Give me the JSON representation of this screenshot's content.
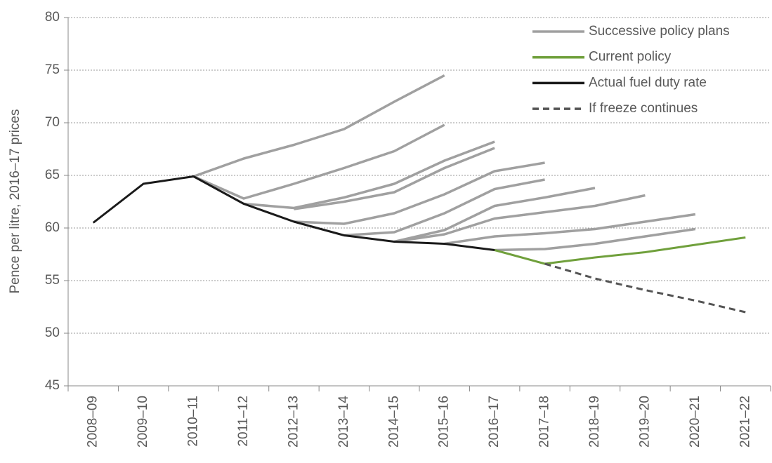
{
  "chart_data": {
    "type": "line",
    "y_label": "Pence per litre, 2016–17 prices",
    "categories": [
      "2008–09",
      "2009–10",
      "2010–11",
      "2011–12",
      "2012–13",
      "2013–14",
      "2014–15",
      "2015–16",
      "2016–17",
      "2017–18",
      "2018–19",
      "2019–20",
      "2020–21",
      "2021–22"
    ],
    "ylim": [
      45,
      80
    ],
    "yticks": [
      45,
      50,
      55,
      60,
      65,
      70,
      75,
      80
    ],
    "grid": true,
    "legend": "top-right",
    "plan_group": {
      "name": "Successive policy plans",
      "color": "#a0a0a0",
      "plans": [
        {
          "values": [
            null,
            null,
            64.9,
            66.6,
            67.9,
            69.4,
            72.0,
            74.5,
            null,
            null,
            null,
            null,
            null,
            null
          ]
        },
        {
          "values": [
            null,
            null,
            64.9,
            62.8,
            64.2,
            65.7,
            67.3,
            69.8,
            null,
            null,
            null,
            null,
            null,
            null
          ]
        },
        {
          "values": [
            null,
            null,
            null,
            62.3,
            61.9,
            62.9,
            64.2,
            66.4,
            68.2,
            null,
            null,
            null,
            null,
            null
          ]
        },
        {
          "values": [
            null,
            null,
            null,
            null,
            61.8,
            62.5,
            63.4,
            65.7,
            67.6,
            null,
            null,
            null,
            null,
            null
          ]
        },
        {
          "values": [
            null,
            null,
            null,
            null,
            60.6,
            60.4,
            61.4,
            63.2,
            65.4,
            66.2,
            null,
            null,
            null,
            null
          ]
        },
        {
          "values": [
            null,
            null,
            null,
            null,
            null,
            59.3,
            59.6,
            61.4,
            63.7,
            64.6,
            null,
            null,
            null,
            null
          ]
        },
        {
          "values": [
            null,
            null,
            null,
            null,
            null,
            null,
            58.7,
            59.8,
            62.1,
            62.9,
            63.8,
            null,
            null,
            null
          ]
        },
        {
          "values": [
            null,
            null,
            null,
            null,
            null,
            null,
            58.7,
            59.4,
            60.9,
            61.5,
            62.1,
            63.1,
            null,
            null
          ]
        },
        {
          "values": [
            null,
            null,
            null,
            null,
            null,
            null,
            null,
            58.5,
            59.2,
            59.5,
            59.9,
            60.6,
            61.3,
            null
          ]
        },
        {
          "values": [
            null,
            null,
            null,
            null,
            null,
            null,
            null,
            null,
            57.9,
            58.0,
            58.5,
            59.2,
            59.9,
            null
          ]
        }
      ]
    },
    "series": [
      {
        "name": "Current policy",
        "color": "#70a03c",
        "style": "solid",
        "values": [
          null,
          null,
          null,
          null,
          null,
          null,
          null,
          null,
          57.9,
          56.6,
          57.2,
          57.7,
          58.4,
          59.1
        ]
      },
      {
        "name": "Actual fuel duty rate",
        "color": "#1a1a1a",
        "style": "solid",
        "values": [
          60.5,
          64.2,
          64.9,
          62.3,
          60.6,
          59.3,
          58.7,
          58.5,
          57.9,
          null,
          null,
          null,
          null,
          null
        ]
      },
      {
        "name": "If freeze continues",
        "color": "#555555",
        "style": "dashed",
        "values": [
          null,
          null,
          null,
          null,
          null,
          null,
          null,
          null,
          null,
          56.6,
          55.2,
          54.1,
          53.1,
          52.0
        ]
      }
    ]
  }
}
